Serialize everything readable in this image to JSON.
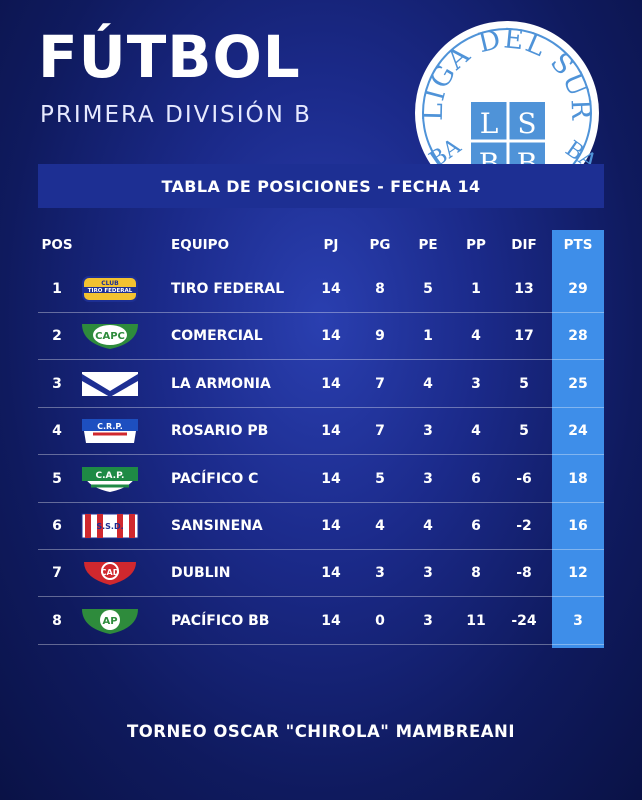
{
  "header": {
    "title": "FÚTBOL",
    "subtitle": "PRIMERA DIVISIÓN B"
  },
  "logo": {
    "arc_text": "LIGA DEL SUR",
    "left_fragment": "BA",
    "right_fragment": "BA",
    "cells": [
      "L",
      "S",
      "B",
      "B"
    ]
  },
  "table": {
    "title": "TABLA DE POSICIONES - FECHA 14",
    "columns": {
      "pos": "POS",
      "team": "EQUIPO",
      "pj": "PJ",
      "pg": "PG",
      "pe": "PE",
      "pp": "PP",
      "dif": "DIF",
      "pts": "PTS"
    },
    "rows": [
      {
        "pos": "1",
        "team": "TIRO FEDERAL",
        "pj": "14",
        "pg": "8",
        "pe": "5",
        "pp": "1",
        "dif": "13",
        "pts": "29",
        "badge": "tiro-federal-crest",
        "badge_text": "CLUB TIRO FEDERAL"
      },
      {
        "pos": "2",
        "team": "COMERCIAL",
        "pj": "14",
        "pg": "9",
        "pe": "1",
        "pp": "4",
        "dif": "17",
        "pts": "28",
        "badge": "comercial-crest",
        "badge_text": "CAPC"
      },
      {
        "pos": "3",
        "team": "LA ARMONIA",
        "pj": "14",
        "pg": "7",
        "pe": "4",
        "pp": "3",
        "dif": "5",
        "pts": "25",
        "badge": "la-armonia-crest",
        "badge_text": ""
      },
      {
        "pos": "4",
        "team": "ROSARIO PB",
        "pj": "14",
        "pg": "7",
        "pe": "3",
        "pp": "4",
        "dif": "5",
        "pts": "24",
        "badge": "rosario-crest",
        "badge_text": "C.R.P."
      },
      {
        "pos": "5",
        "team": "PACÍFICO C",
        "pj": "14",
        "pg": "5",
        "pe": "3",
        "pp": "6",
        "dif": "-6",
        "pts": "18",
        "badge": "pacifico-c-crest",
        "badge_text": "C.A.P."
      },
      {
        "pos": "6",
        "team": "SANSINENA",
        "pj": "14",
        "pg": "4",
        "pe": "4",
        "pp": "6",
        "dif": "-2",
        "pts": "16",
        "badge": "sansinena-crest",
        "badge_text": "S.S.D."
      },
      {
        "pos": "7",
        "team": "DUBLIN",
        "pj": "14",
        "pg": "3",
        "pe": "3",
        "pp": "8",
        "dif": "-8",
        "pts": "12",
        "badge": "dublin-crest",
        "badge_text": "CAD"
      },
      {
        "pos": "8",
        "team": "PACÍFICO BB",
        "pj": "14",
        "pg": "0",
        "pe": "3",
        "pp": "11",
        "dif": "-24",
        "pts": "3",
        "badge": "pacifico-bb-crest",
        "badge_text": "AP"
      }
    ]
  },
  "footer": {
    "text": "TORNEO OSCAR \"CHIROLA\" MAMBREANI"
  },
  "colors": {
    "background": "#1b2a8a",
    "title_bar": "#1d2f93",
    "pts_column": "#3e8ee9",
    "logo_blue": "#4f93d8"
  }
}
